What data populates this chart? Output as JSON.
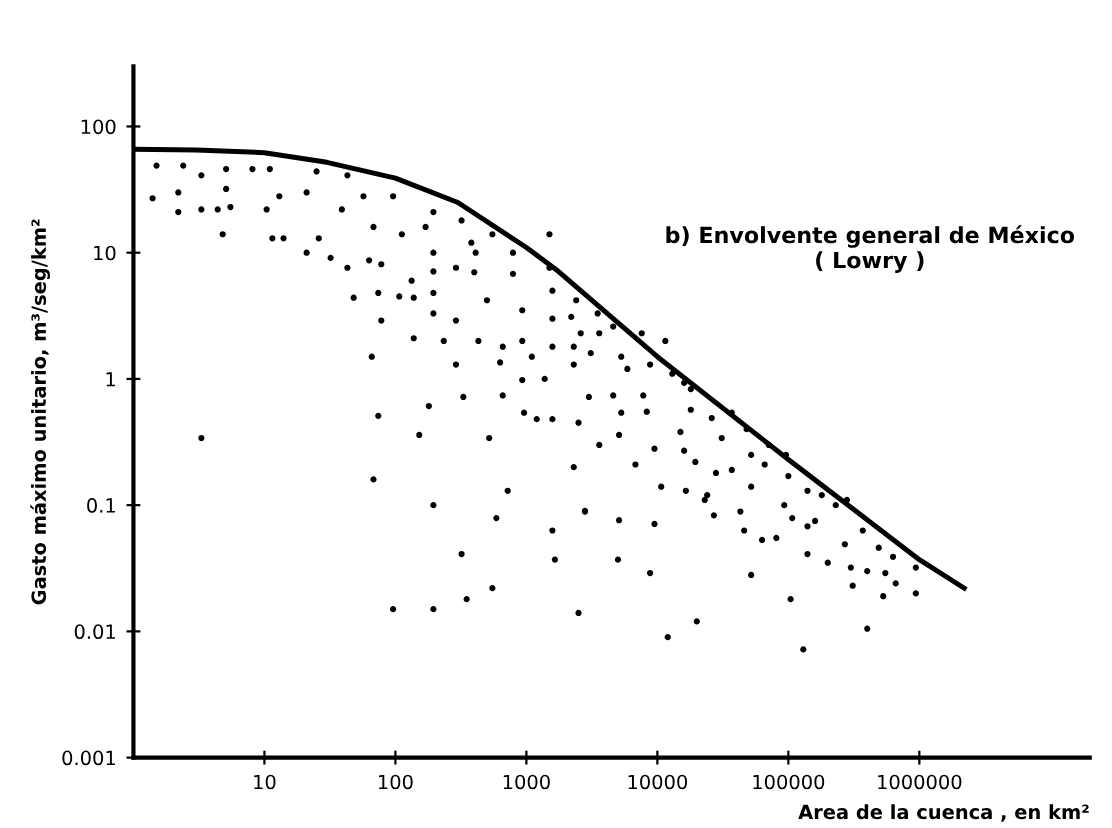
{
  "chart_data": {
    "type": "scatter",
    "ylabel": "Gasto máximo unitario, m³/seg/km²",
    "xlabel": "Area de la cuenca , en km²",
    "annotations": [
      "b) Envolvente general de México\n( Lowry )"
    ],
    "log": "xy",
    "grid": false,
    "legend": false,
    "marker": "circle",
    "xlim": [
      1,
      20000000
    ],
    "ylim": [
      0.001,
      300
    ],
    "xticks": [
      10,
      100,
      1000,
      10000,
      100000,
      1000000
    ],
    "yticks": [
      0.001,
      0.01,
      0.1,
      1,
      10,
      100
    ],
    "series": [
      {
        "type": "line",
        "color": "#000000",
        "line_style": "solid",
        "marker": "none",
        "x": [
          1,
          3,
          10,
          30,
          100,
          300,
          1000,
          1700,
          10000,
          100000,
          1000000,
          2200000
        ],
        "values": [
          66,
          65,
          62,
          52,
          39,
          25,
          11,
          7.3,
          1.5,
          0.23,
          0.037,
          0.022
        ]
      },
      {
        "color": "#000000",
        "x": [
          1.5,
          1.4,
          2.4,
          2.2,
          2.2,
          3.3,
          3.3,
          4.4,
          5.1,
          5.1,
          4.8,
          5.5,
          8.1,
          11,
          10.4,
          13,
          11.5,
          14,
          21,
          21,
          25,
          26,
          32,
          39,
          43,
          43,
          48,
          57,
          63,
          68,
          74,
          78,
          78,
          66,
          74,
          68,
          96,
          107,
          112,
          133,
          138,
          138,
          170,
          180,
          152,
          195,
          195,
          195,
          195,
          195,
          234,
          290,
          290,
          290,
          320,
          330,
          380,
          410,
          400,
          430,
          500,
          520,
          550,
          630,
          660,
          660,
          720,
          790,
          790,
          930,
          930,
          930,
          960,
          1100,
          1200,
          1380,
          1500,
          1500,
          1580,
          1580,
          1580,
          3.3,
          195,
          590,
          1580,
          1650,
          320,
          96,
          195,
          350,
          550,
          2400,
          2600,
          3500,
          4600,
          3600,
          2200,
          2300,
          3100,
          2300,
          5300,
          5900,
          7600,
          8800,
          13000,
          11500,
          16000,
          1580,
          2500,
          3000,
          4600,
          7800,
          5300,
          8300,
          18000,
          18000,
          15000,
          26000,
          37000,
          31000,
          48000,
          71000,
          52000,
          96000,
          3600,
          5100,
          6800,
          9500,
          16000,
          19500,
          28000,
          37000,
          66000,
          100000,
          10700,
          16500,
          24000,
          52000,
          93000,
          140000,
          180000,
          230000,
          280000,
          2300,
          2800,
          2500,
          2800,
          5100,
          5000,
          8800,
          9500,
          12000,
          20000,
          23000,
          27000,
          43000,
          46000,
          52000,
          63000,
          81000,
          107000,
          104000,
          130000,
          140000,
          160000,
          140000,
          200000,
          270000,
          300000,
          310000,
          370000,
          400000,
          400000,
          490000,
          550000,
          530000,
          630000,
          660000,
          940000,
          940000
        ],
        "values": [
          49,
          27,
          49,
          30,
          21,
          41,
          22,
          22,
          46,
          32,
          14,
          23,
          46,
          46,
          22,
          28,
          13,
          13,
          30,
          10,
          44,
          13,
          9.1,
          22,
          41,
          7.6,
          4.4,
          28,
          8.7,
          16,
          4.8,
          8.1,
          2.9,
          1.5,
          0.51,
          0.16,
          28,
          4.5,
          14,
          6,
          4.4,
          2.1,
          16,
          0.61,
          0.36,
          21,
          10,
          7.1,
          4.8,
          3.3,
          2,
          7.6,
          2.9,
          1.3,
          18,
          0.72,
          12,
          10,
          7,
          2,
          4.2,
          0.34,
          14,
          1.35,
          1.8,
          0.74,
          0.13,
          10,
          6.8,
          3.5,
          2,
          0.98,
          0.54,
          1.5,
          0.48,
          1,
          14,
          7.6,
          5,
          3,
          1.8,
          0.34,
          0.1,
          0.079,
          0.063,
          0.037,
          0.041,
          0.015,
          0.015,
          0.018,
          0.022,
          4.2,
          2.3,
          3.3,
          2.6,
          2.3,
          3.1,
          1.8,
          1.6,
          1.3,
          1.5,
          1.2,
          2.3,
          1.3,
          1.1,
          2,
          0.93,
          0.48,
          0.45,
          0.72,
          0.74,
          0.74,
          0.54,
          0.55,
          0.83,
          0.57,
          0.38,
          0.49,
          0.54,
          0.34,
          0.4,
          0.3,
          0.25,
          0.25,
          0.3,
          0.36,
          0.21,
          0.28,
          0.27,
          0.22,
          0.18,
          0.19,
          0.21,
          0.17,
          0.14,
          0.13,
          0.12,
          0.14,
          0.1,
          0.13,
          0.12,
          0.1,
          0.11,
          0.2,
          0.09,
          0.014,
          0.089,
          0.076,
          0.037,
          0.029,
          0.071,
          0.009,
          0.012,
          0.11,
          0.083,
          0.089,
          0.063,
          0.028,
          0.053,
          0.055,
          0.079,
          0.018,
          0.0072,
          0.068,
          0.075,
          0.041,
          0.035,
          0.049,
          0.032,
          0.023,
          0.063,
          0.03,
          0.0105,
          0.046,
          0.029,
          0.019,
          0.039,
          0.024,
          0.032,
          0.02
        ]
      }
    ]
  }
}
